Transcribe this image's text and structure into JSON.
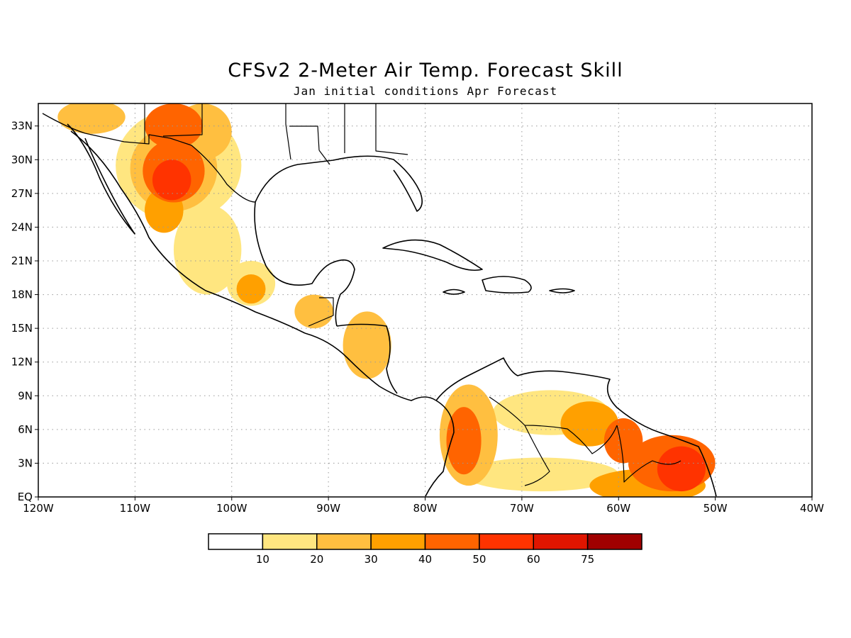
{
  "title": "CFSv2 2-Meter Air Temp. Forecast Skill",
  "subtitle": "Jan initial conditions  Apr Forecast",
  "map": {
    "lon_range": [
      -120,
      -40
    ],
    "lat_range": [
      0,
      35
    ],
    "x_ticks": [
      {
        "lon": -120,
        "label": "120W"
      },
      {
        "lon": -110,
        "label": "110W"
      },
      {
        "lon": -100,
        "label": "100W"
      },
      {
        "lon": -90,
        "label": "90W"
      },
      {
        "lon": -80,
        "label": "80W"
      },
      {
        "lon": -70,
        "label": "70W"
      },
      {
        "lon": -60,
        "label": "60W"
      },
      {
        "lon": -50,
        "label": "50W"
      },
      {
        "lon": -40,
        "label": "40W"
      }
    ],
    "y_ticks": [
      {
        "lat": 0,
        "label": "EQ"
      },
      {
        "lat": 3,
        "label": "3N"
      },
      {
        "lat": 6,
        "label": "6N"
      },
      {
        "lat": 9,
        "label": "9N"
      },
      {
        "lat": 12,
        "label": "12N"
      },
      {
        "lat": 15,
        "label": "15N"
      },
      {
        "lat": 18,
        "label": "18N"
      },
      {
        "lat": 21,
        "label": "21N"
      },
      {
        "lat": 24,
        "label": "24N"
      },
      {
        "lat": 27,
        "label": "27N"
      },
      {
        "lat": 30,
        "label": "30N"
      },
      {
        "lat": 33,
        "label": "33N"
      }
    ],
    "grid": true
  },
  "colorbar": {
    "colors": [
      "#ffffff",
      "#ffe680",
      "#ffbf40",
      "#ffa000",
      "#ff6400",
      "#ff3300",
      "#e01500",
      "#a00000"
    ],
    "labels": [
      "10",
      "20",
      "30",
      "40",
      "50",
      "60",
      "75"
    ]
  },
  "skill_regions": [
    {
      "name": "northern-mexico",
      "lon": -105.5,
      "lat": 29.5,
      "rx": 6.5,
      "ry": 5,
      "level": 1
    },
    {
      "name": "northern-mexico",
      "lon": -106,
      "lat": 29.2,
      "rx": 4.5,
      "ry": 3.8,
      "level": 2
    },
    {
      "name": "northern-mexico",
      "lon": -106,
      "lat": 29,
      "rx": 3.2,
      "ry": 2.8,
      "level": 4
    },
    {
      "name": "northern-mexico",
      "lon": -106.2,
      "lat": 28.2,
      "rx": 2,
      "ry": 1.8,
      "level": 5
    },
    {
      "name": "chihuahua-north",
      "lon": -106,
      "lat": 33,
      "rx": 3,
      "ry": 2,
      "level": 4
    },
    {
      "name": "texas-border",
      "lon": -103,
      "lat": 32.5,
      "rx": 3,
      "ry": 2.5,
      "level": 2
    },
    {
      "name": "baja-north",
      "lon": -114.5,
      "lat": 33.8,
      "rx": 3.5,
      "ry": 1.5,
      "level": 2
    },
    {
      "name": "sinaloa",
      "lon": -107,
      "lat": 25.5,
      "rx": 2,
      "ry": 2,
      "level": 3
    },
    {
      "name": "central-mexico",
      "lon": -102.5,
      "lat": 22,
      "rx": 3.5,
      "ry": 4,
      "level": 1
    },
    {
      "name": "veracruz",
      "lon": -98,
      "lat": 19,
      "rx": 2.5,
      "ry": 2,
      "level": 1
    },
    {
      "name": "veracruz",
      "lon": -98,
      "lat": 18.5,
      "rx": 1.5,
      "ry": 1.3,
      "level": 3
    },
    {
      "name": "guatemala",
      "lon": -91.5,
      "lat": 16.5,
      "rx": 2,
      "ry": 1.5,
      "level": 2
    },
    {
      "name": "honduras-nicaragua",
      "lon": -86,
      "lat": 13.5,
      "rx": 2.5,
      "ry": 3,
      "level": 2
    },
    {
      "name": "colombia",
      "lon": -75.5,
      "lat": 5.5,
      "rx": 3,
      "ry": 4.5,
      "level": 2
    },
    {
      "name": "colombia",
      "lon": -76,
      "lat": 5,
      "rx": 1.8,
      "ry": 3,
      "level": 4
    },
    {
      "name": "venezuela",
      "lon": -67,
      "lat": 7.5,
      "rx": 6,
      "ry": 2,
      "level": 1
    },
    {
      "name": "venezuela-east",
      "lon": -63,
      "lat": 6.5,
      "rx": 3,
      "ry": 2,
      "level": 3
    },
    {
      "name": "guyana",
      "lon": -59.5,
      "lat": 5,
      "rx": 2,
      "ry": 2,
      "level": 4
    },
    {
      "name": "suriname-guiana",
      "lon": -54.5,
      "lat": 3,
      "rx": 4.5,
      "ry": 2.5,
      "level": 4
    },
    {
      "name": "suriname-guiana",
      "lon": -53.5,
      "lat": 2.5,
      "rx": 2.5,
      "ry": 2,
      "level": 5
    },
    {
      "name": "amazon-north",
      "lon": -57,
      "lat": 1,
      "rx": 6,
      "ry": 1.5,
      "level": 3
    },
    {
      "name": "amazon-west",
      "lon": -68,
      "lat": 2,
      "rx": 8,
      "ry": 1.5,
      "level": 1
    }
  ]
}
